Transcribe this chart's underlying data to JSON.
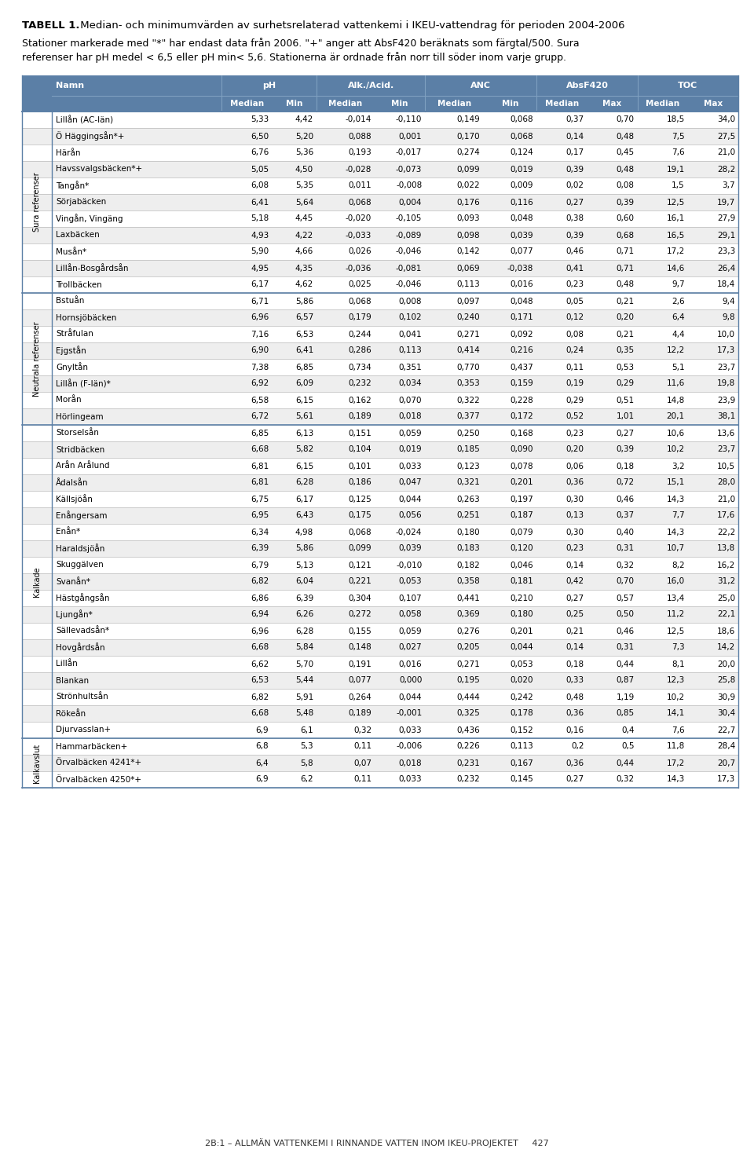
{
  "title_bold": "TABELL 1.",
  "title_rest": " Median- och minimumvärden av surhetsrelaterad vattenkemi i IKEU-vattendrag för perioden 2004-2006",
  "subtitle_line1": "Stationer markerade med \"*\" har endast data från 2006. \"+\" anger att AbsF420 beräknats som färgtal/500. Sura",
  "subtitle_line2": "referenser har pH medel < 6,5 eller pH min< 5,6. Stationerna är ordnade från norr till söder inom varje grupp.",
  "footer": "2B:1 – ALLMÄN VATTENKEMI I RINNANDE VATTEN INOM IKEU-PROJEKTET     427",
  "groups": [
    {
      "label": "Sura referenser",
      "rows": [
        [
          "Lillån (AC-län)",
          "5,33",
          "4,42",
          "-0,014",
          "-0,110",
          "0,149",
          "0,068",
          "0,37",
          "0,70",
          "18,5",
          "34,0"
        ],
        [
          "Ö Häggingsån*+",
          "6,50",
          "5,20",
          "0,088",
          "0,001",
          "0,170",
          "0,068",
          "0,14",
          "0,48",
          "7,5",
          "27,5"
        ],
        [
          "Härån",
          "6,76",
          "5,36",
          "0,193",
          "-0,017",
          "0,274",
          "0,124",
          "0,17",
          "0,45",
          "7,6",
          "21,0"
        ],
        [
          "Havssvalgsbäcken*+",
          "5,05",
          "4,50",
          "-0,028",
          "-0,073",
          "0,099",
          "0,019",
          "0,39",
          "0,48",
          "19,1",
          "28,2"
        ],
        [
          "Tangån*",
          "6,08",
          "5,35",
          "0,011",
          "-0,008",
          "0,022",
          "0,009",
          "0,02",
          "0,08",
          "1,5",
          "3,7"
        ],
        [
          "Sörjabäcken",
          "6,41",
          "5,64",
          "0,068",
          "0,004",
          "0,176",
          "0,116",
          "0,27",
          "0,39",
          "12,5",
          "19,7"
        ],
        [
          "Vingån, Vingäng",
          "5,18",
          "4,45",
          "-0,020",
          "-0,105",
          "0,093",
          "0,048",
          "0,38",
          "0,60",
          "16,1",
          "27,9"
        ],
        [
          "Laxbäcken",
          "4,93",
          "4,22",
          "-0,033",
          "-0,089",
          "0,098",
          "0,039",
          "0,39",
          "0,68",
          "16,5",
          "29,1"
        ],
        [
          "Musån*",
          "5,90",
          "4,66",
          "0,026",
          "-0,046",
          "0,142",
          "0,077",
          "0,46",
          "0,71",
          "17,2",
          "23,3"
        ],
        [
          "Lillån-Bosgårdsån",
          "4,95",
          "4,35",
          "-0,036",
          "-0,081",
          "0,069",
          "-0,038",
          "0,41",
          "0,71",
          "14,6",
          "26,4"
        ],
        [
          "Trollbäcken",
          "6,17",
          "4,62",
          "0,025",
          "-0,046",
          "0,113",
          "0,016",
          "0,23",
          "0,48",
          "9,7",
          "18,4"
        ]
      ]
    },
    {
      "label": "Neutrala referenser",
      "rows": [
        [
          "Bstuån",
          "6,71",
          "5,86",
          "0,068",
          "0,008",
          "0,097",
          "0,048",
          "0,05",
          "0,21",
          "2,6",
          "9,4"
        ],
        [
          "Hornsjöbäcken",
          "6,96",
          "6,57",
          "0,179",
          "0,102",
          "0,240",
          "0,171",
          "0,12",
          "0,20",
          "6,4",
          "9,8"
        ],
        [
          "Stråfulan",
          "7,16",
          "6,53",
          "0,244",
          "0,041",
          "0,271",
          "0,092",
          "0,08",
          "0,21",
          "4,4",
          "10,0"
        ],
        [
          "Ejgstån",
          "6,90",
          "6,41",
          "0,286",
          "0,113",
          "0,414",
          "0,216",
          "0,24",
          "0,35",
          "12,2",
          "17,3"
        ],
        [
          "Gnyltån",
          "7,38",
          "6,85",
          "0,734",
          "0,351",
          "0,770",
          "0,437",
          "0,11",
          "0,53",
          "5,1",
          "23,7"
        ],
        [
          "Lillån (F-län)*",
          "6,92",
          "6,09",
          "0,232",
          "0,034",
          "0,353",
          "0,159",
          "0,19",
          "0,29",
          "11,6",
          "19,8"
        ],
        [
          "Morån",
          "6,58",
          "6,15",
          "0,162",
          "0,070",
          "0,322",
          "0,228",
          "0,29",
          "0,51",
          "14,8",
          "23,9"
        ],
        [
          "Hörlingeam",
          "6,72",
          "5,61",
          "0,189",
          "0,018",
          "0,377",
          "0,172",
          "0,52",
          "1,01",
          "20,1",
          "38,1"
        ]
      ]
    },
    {
      "label": "Kalkade",
      "rows": [
        [
          "Storselsån",
          "6,85",
          "6,13",
          "0,151",
          "0,059",
          "0,250",
          "0,168",
          "0,23",
          "0,27",
          "10,6",
          "13,6"
        ],
        [
          "Stridbäcken",
          "6,68",
          "5,82",
          "0,104",
          "0,019",
          "0,185",
          "0,090",
          "0,20",
          "0,39",
          "10,2",
          "23,7"
        ],
        [
          "Arån Arålund",
          "6,81",
          "6,15",
          "0,101",
          "0,033",
          "0,123",
          "0,078",
          "0,06",
          "0,18",
          "3,2",
          "10,5"
        ],
        [
          "Ådalsån",
          "6,81",
          "6,28",
          "0,186",
          "0,047",
          "0,321",
          "0,201",
          "0,36",
          "0,72",
          "15,1",
          "28,0"
        ],
        [
          "Källsjöån",
          "6,75",
          "6,17",
          "0,125",
          "0,044",
          "0,263",
          "0,197",
          "0,30",
          "0,46",
          "14,3",
          "21,0"
        ],
        [
          "Enångersam",
          "6,95",
          "6,43",
          "0,175",
          "0,056",
          "0,251",
          "0,187",
          "0,13",
          "0,37",
          "7,7",
          "17,6"
        ],
        [
          "Enån*",
          "6,34",
          "4,98",
          "0,068",
          "-0,024",
          "0,180",
          "0,079",
          "0,30",
          "0,40",
          "14,3",
          "22,2"
        ],
        [
          "Haraldsjöån",
          "6,39",
          "5,86",
          "0,099",
          "0,039",
          "0,183",
          "0,120",
          "0,23",
          "0,31",
          "10,7",
          "13,8"
        ],
        [
          "Skuggälven",
          "6,79",
          "5,13",
          "0,121",
          "-0,010",
          "0,182",
          "0,046",
          "0,14",
          "0,32",
          "8,2",
          "16,2"
        ],
        [
          "Svanån*",
          "6,82",
          "6,04",
          "0,221",
          "0,053",
          "0,358",
          "0,181",
          "0,42",
          "0,70",
          "16,0",
          "31,2"
        ],
        [
          "Hästgångsån",
          "6,86",
          "6,39",
          "0,304",
          "0,107",
          "0,441",
          "0,210",
          "0,27",
          "0,57",
          "13,4",
          "25,0"
        ],
        [
          "Ljungån*",
          "6,94",
          "6,26",
          "0,272",
          "0,058",
          "0,369",
          "0,180",
          "0,25",
          "0,50",
          "11,2",
          "22,1"
        ],
        [
          "Sällevadsån*",
          "6,96",
          "6,28",
          "0,155",
          "0,059",
          "0,276",
          "0,201",
          "0,21",
          "0,46",
          "12,5",
          "18,6"
        ],
        [
          "Hovgårdsån",
          "6,68",
          "5,84",
          "0,148",
          "0,027",
          "0,205",
          "0,044",
          "0,14",
          "0,31",
          "7,3",
          "14,2"
        ],
        [
          "Lillån",
          "6,62",
          "5,70",
          "0,191",
          "0,016",
          "0,271",
          "0,053",
          "0,18",
          "0,44",
          "8,1",
          "20,0"
        ],
        [
          "Blankan",
          "6,53",
          "5,44",
          "0,077",
          "0,000",
          "0,195",
          "0,020",
          "0,33",
          "0,87",
          "12,3",
          "25,8"
        ],
        [
          "Strönhultsån",
          "6,82",
          "5,91",
          "0,264",
          "0,044",
          "0,444",
          "0,242",
          "0,48",
          "1,19",
          "10,2",
          "30,9"
        ],
        [
          "Rökeån",
          "6,68",
          "5,48",
          "0,189",
          "-0,001",
          "0,325",
          "0,178",
          "0,36",
          "0,85",
          "14,1",
          "30,4"
        ],
        [
          "Djurvasslan+",
          "6,9",
          "6,1",
          "0,32",
          "0,033",
          "0,436",
          "0,152",
          "0,16",
          "0,4",
          "7,6",
          "22,7"
        ]
      ]
    },
    {
      "label": "Kalkavslut",
      "rows": [
        [
          "Hammarbäcken+",
          "6,8",
          "5,3",
          "0,11",
          "-0,006",
          "0,226",
          "0,113",
          "0,2",
          "0,5",
          "11,8",
          "28,4"
        ],
        [
          "Örvalbäcken 4241*+",
          "6,4",
          "5,8",
          "0,07",
          "0,018",
          "0,231",
          "0,167",
          "0,36",
          "0,44",
          "17,2",
          "20,7"
        ],
        [
          "Örvalbäcken 4250*+",
          "6,9",
          "6,2",
          "0,11",
          "0,033",
          "0,232",
          "0,145",
          "0,27",
          "0,32",
          "14,3",
          "17,3"
        ]
      ]
    }
  ],
  "bg_color": "#ffffff",
  "header_bg": "#5b7fa6",
  "header_fg": "#ffffff",
  "border_color": "#aaaaaa",
  "group_border_color": "#5b7fa6"
}
